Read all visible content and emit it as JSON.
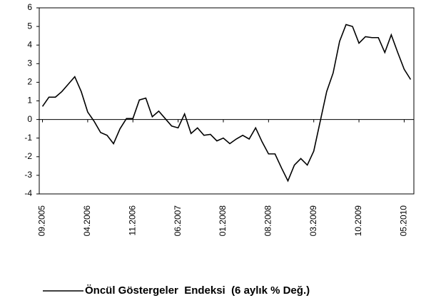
{
  "chart_data": {
    "type": "line",
    "categories": [
      "09.2005",
      null,
      null,
      null,
      null,
      null,
      null,
      "04.2006",
      null,
      null,
      null,
      null,
      null,
      null,
      "11.2006",
      null,
      null,
      null,
      null,
      null,
      null,
      "06.2007",
      null,
      null,
      null,
      null,
      null,
      null,
      "01.2008",
      null,
      null,
      null,
      null,
      null,
      null,
      "08.2008",
      null,
      null,
      null,
      null,
      null,
      null,
      "03.2009",
      null,
      null,
      null,
      null,
      null,
      null,
      "10.2009",
      null,
      null,
      null,
      null,
      null,
      null,
      "05.2010",
      null
    ],
    "series": [
      {
        "name": "Öncül Göstergeler  Endeksi  (6 aylık % Değ.)",
        "color": "#000000",
        "values": [
          0.7,
          1.2,
          1.2,
          1.5,
          1.9,
          2.3,
          1.5,
          0.4,
          -0.1,
          -0.7,
          -0.85,
          -1.3,
          -0.5,
          0.05,
          0.05,
          1.05,
          1.15,
          0.15,
          0.45,
          0.05,
          -0.35,
          -0.45,
          0.3,
          -0.75,
          -0.45,
          -0.85,
          -0.8,
          -1.15,
          -1.0,
          -1.3,
          -1.05,
          -0.85,
          -1.05,
          -0.45,
          -1.2,
          -1.85,
          -1.85,
          -2.6,
          -3.3,
          -2.45,
          -2.1,
          -2.45,
          -1.7,
          -0.1,
          1.5,
          2.5,
          4.2,
          5.1,
          5.0,
          4.1,
          4.45,
          4.4,
          4.4,
          3.6,
          4.55,
          3.6,
          2.7,
          2.15
        ]
      }
    ],
    "ylim": [
      -4,
      6
    ],
    "yticks": [
      -4,
      -3,
      -2,
      -1,
      0,
      1,
      2,
      3,
      4,
      5,
      6
    ],
    "legend": "bottom",
    "grid": false
  }
}
